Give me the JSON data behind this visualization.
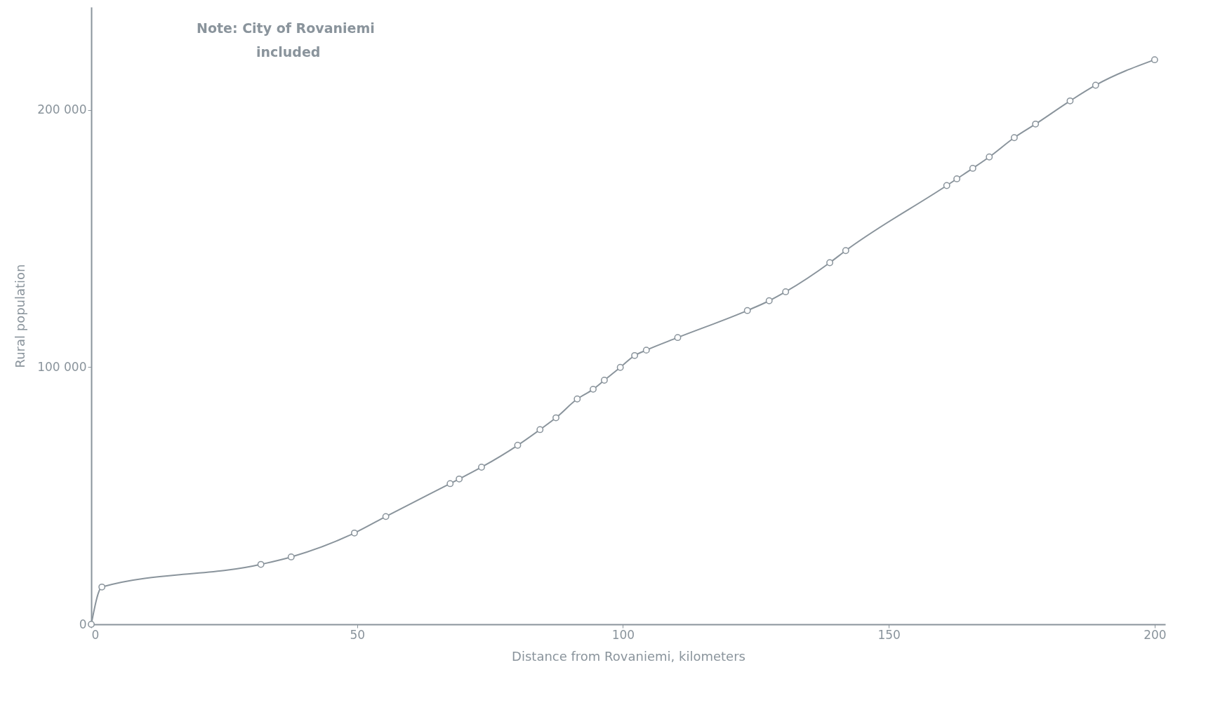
{
  "chart_data": {
    "type": "line",
    "xlabel": "Distance from  Rovaniemi, kilometers",
    "ylabel": "Rural population",
    "annotations": [
      "Note: City of Rovaniemi",
      "included"
    ],
    "x": [
      0,
      2,
      31.9,
      37.6,
      49.5,
      55.4,
      67.5,
      69.2,
      73.4,
      80.2,
      84.4,
      87.4,
      91.4,
      94.4,
      96.5,
      99.5,
      102.2,
      104.4,
      110.3,
      123.4,
      127.5,
      130.6,
      138.9,
      141.9,
      160.9,
      162.8,
      165.8,
      168.9,
      173.6,
      177.6,
      184.1,
      188.9,
      200
    ],
    "series": [
      {
        "color": "#8a949c",
        "values": [
          0,
          14500,
          23300,
          26200,
          35500,
          41900,
          54700,
          56500,
          61100,
          69600,
          75700,
          80300,
          87600,
          91400,
          94900,
          99900,
          104500,
          106600,
          111500,
          122000,
          125800,
          129300,
          140600,
          145300,
          170600,
          173200,
          177300,
          181700,
          189200,
          194500,
          203500,
          209600,
          219500
        ]
      }
    ],
    "xlim": [
      0,
      202
    ],
    "xticks": [
      0,
      50,
      100,
      150,
      200
    ],
    "ylim": [
      0,
      240000
    ],
    "yticks": [
      0,
      {
        "value": 100000,
        "label": "100 000"
      },
      {
        "value": 200000,
        "label": "200 000"
      }
    ],
    "grid": false,
    "marker": "circle",
    "line_style": "solid"
  }
}
